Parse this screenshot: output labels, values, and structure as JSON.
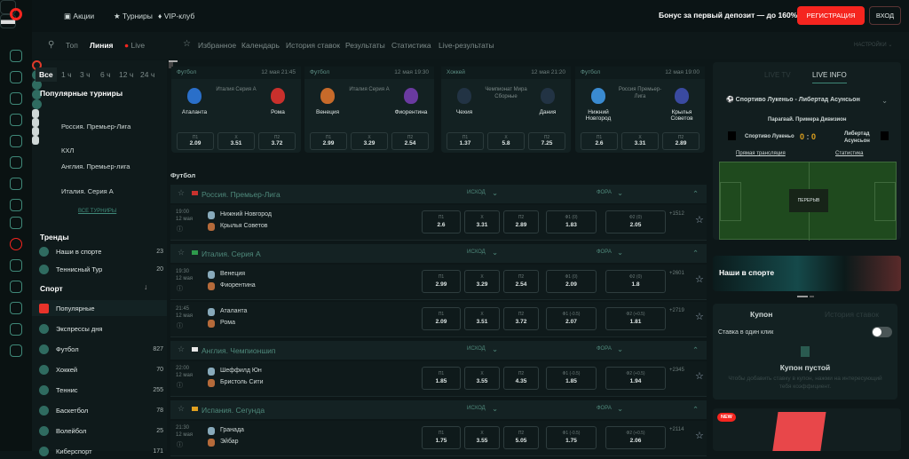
{
  "topbar": {
    "links": [
      "Акции",
      "Турниры",
      "VIP-клуб"
    ],
    "bonus": "Бонус за первый депозит — до 160%",
    "register": "РЕГИСТРАЦИЯ",
    "login": "ВХОД"
  },
  "nav": {
    "modes": [
      "Топ",
      "Линия",
      "Live"
    ],
    "links": [
      "Избранное",
      "Календарь",
      "История ставок",
      "Результаты",
      "Статистика",
      "Live-результаты"
    ],
    "settings": "НАСТРОЙКИ"
  },
  "left": {
    "time_filters": [
      "Все",
      "1 ч",
      "3 ч",
      "6 ч",
      "12 ч",
      "24 ч"
    ],
    "popular_title": "Популярные турниры",
    "tournaments": [
      "Россия. Премьер-Лига",
      "КХЛ",
      "Англия. Премьер-лига",
      "Италия. Серия А"
    ],
    "all_tournaments": "ВСЕ ТУРНИРЫ",
    "trends_title": "Тренды",
    "trends": [
      {
        "name": "Наши в спорте",
        "count": "23"
      },
      {
        "name": "Теннисный Тур",
        "count": "20"
      }
    ],
    "sport_title": "Спорт",
    "sports": [
      {
        "name": "Популярные",
        "count": ""
      },
      {
        "name": "Экспрессы дня",
        "count": ""
      },
      {
        "name": "Футбол",
        "count": "827"
      },
      {
        "name": "Хоккей",
        "count": "70"
      },
      {
        "name": "Теннис",
        "count": "255"
      },
      {
        "name": "Баскетбол",
        "count": "78"
      },
      {
        "name": "Волейбол",
        "count": "25"
      },
      {
        "name": "Киберспорт",
        "count": "171"
      }
    ]
  },
  "featured": [
    {
      "sport": "Футбол",
      "date": "12 мая 21:45",
      "home": "Аталанта",
      "away": "Рома",
      "league": "Италия Серия А",
      "odds": [
        [
          "П1",
          "2.09"
        ],
        [
          "X",
          "3.51"
        ],
        [
          "П2",
          "3.72"
        ]
      ]
    },
    {
      "sport": "Футбол",
      "date": "12 мая 19:30",
      "home": "Венеция",
      "away": "Фиорентина",
      "league": "Италия Серия А",
      "odds": [
        [
          "П1",
          "2.99"
        ],
        [
          "X",
          "3.29"
        ],
        [
          "П2",
          "2.54"
        ]
      ]
    },
    {
      "sport": "Хоккей",
      "date": "12 мая 21:20",
      "home": "Чехия",
      "away": "Дания",
      "league": "Чемпионат Мира Сборные",
      "odds": [
        [
          "П1",
          "1.37"
        ],
        [
          "X",
          "5.8"
        ],
        [
          "П2",
          "7.25"
        ]
      ]
    },
    {
      "sport": "Футбол",
      "date": "12 мая 19:00",
      "home": "Нижний Новгород",
      "away": "Крылья Советов",
      "league": "Россия Премьер-Лига",
      "odds": [
        [
          "П1",
          "2.6"
        ],
        [
          "X",
          "3.31"
        ],
        [
          "П2",
          "2.89"
        ]
      ]
    }
  ],
  "events": {
    "section": "Футбол",
    "col_outcome": "ИСХОД",
    "col_handicap": "ФОРА",
    "leagues": [
      {
        "name": "Россия. Премьер-Лига",
        "flag": "#c8322e",
        "matches": [
          {
            "time": "19:00",
            "date": "12 мая",
            "home": "Нижний Новгород",
            "away": "Крылья Советов",
            "odds": [
              [
                "П1",
                "2.6"
              ],
              [
                "X",
                "3.31"
              ],
              [
                "П2",
                "2.89"
              ],
              [
                "Ф1 (0)",
                "1.83"
              ],
              [
                "Ф2 (0)",
                "2.05"
              ]
            ],
            "more": "+1512"
          }
        ]
      },
      {
        "name": "Италия. Серия А",
        "flag": "#2e9a4c",
        "matches": [
          {
            "time": "19:30",
            "date": "12 мая",
            "home": "Венеция",
            "away": "Фиорентина",
            "odds": [
              [
                "П1",
                "2.99"
              ],
              [
                "X",
                "3.29"
              ],
              [
                "П2",
                "2.54"
              ],
              [
                "Ф1 (0)",
                "2.09"
              ],
              [
                "Ф2 (0)",
                "1.8"
              ]
            ],
            "more": "+2601"
          },
          {
            "time": "21:45",
            "date": "12 мая",
            "home": "Аталанта",
            "away": "Рома",
            "odds": [
              [
                "П1",
                "2.09"
              ],
              [
                "X",
                "3.51"
              ],
              [
                "П2",
                "3.72"
              ],
              [
                "Ф1 (-0.5)",
                "2.07"
              ],
              [
                "Ф2 (+0.5)",
                "1.81"
              ]
            ],
            "more": "+2719"
          }
        ]
      },
      {
        "name": "Англия. Чемпионшип",
        "flag": "#e8e8e8",
        "matches": [
          {
            "time": "22:00",
            "date": "12 мая",
            "home": "Шеффилд Юн",
            "away": "Бристоль Сити",
            "odds": [
              [
                "П1",
                "1.85"
              ],
              [
                "X",
                "3.55"
              ],
              [
                "П2",
                "4.35"
              ],
              [
                "Ф1 (-0.5)",
                "1.85"
              ],
              [
                "Ф2 (+0.5)",
                "1.94"
              ]
            ],
            "more": "+2345"
          }
        ]
      },
      {
        "name": "Испания. Сегунда",
        "flag": "#e0a020",
        "matches": [
          {
            "time": "21:30",
            "date": "12 мая",
            "home": "Гранада",
            "away": "Эйбар",
            "odds": [
              [
                "П1",
                "1.75"
              ],
              [
                "X",
                "3.55"
              ],
              [
                "П2",
                "5.05"
              ],
              [
                "Ф1 (-0.5)",
                "1.75"
              ],
              [
                "Ф2 (+0.5)",
                "2.06"
              ]
            ],
            "more": "+2114"
          }
        ]
      }
    ]
  },
  "live": {
    "tabs": [
      "LIVE TV",
      "LIVE INFO"
    ],
    "match": "Спортиво Лукеньо - Либертад Асунсьон",
    "league": "Парагвай. Примера Дивизион",
    "home": "Спортиво Лукеньо",
    "away": "Либертад Асунсьон",
    "score_home": "0",
    "score_sep": ":",
    "score_away": "0",
    "link_stream": "Прямая трансляция",
    "link_stats": "Статистика",
    "status": "ПЕРЕРЫВ"
  },
  "promo": {
    "title": "Наши в спорте"
  },
  "coupon": {
    "tabs": [
      "Купон",
      "История ставок"
    ],
    "one_click": "Ставка в один клик",
    "one_click_on": false,
    "empty_title": "Купон пустой",
    "empty_text": "Чтобы добавить ставку в купон, нажми на интересующий тебя коэффициент."
  },
  "banner": {
    "badge": "NEW"
  },
  "colors": {
    "accent": "#f5251f",
    "teal": "#3f8878",
    "score": "#e3a41f"
  }
}
